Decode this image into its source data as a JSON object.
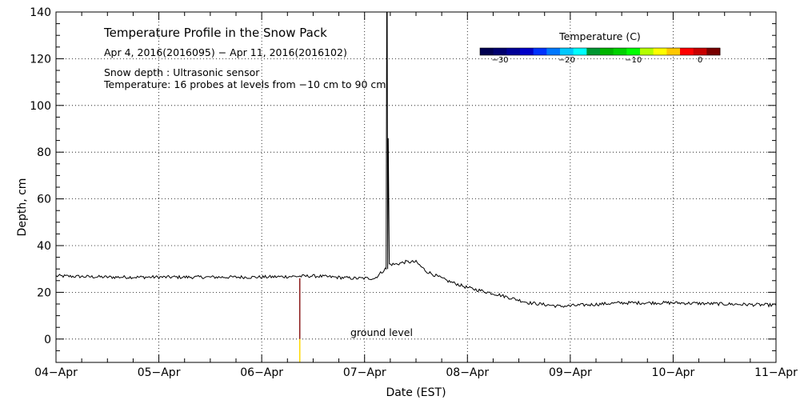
{
  "chart_data": {
    "type": "line",
    "title": "Temperature Profile in the Snow Pack",
    "subtitle": "Apr  4, 2016(2016095) − Apr 11, 2016(2016102)",
    "notes": [
      "Snow depth : Ultrasonic sensor",
      "Temperature: 16 probes at levels from −10 cm to 90 cm"
    ],
    "annotation": "ground level",
    "xlabel": "Date (EST)",
    "ylabel": "Depth, cm",
    "xlim": [
      0,
      7
    ],
    "ylim": [
      -10,
      140
    ],
    "x_tick_values": [
      0,
      1,
      2,
      3,
      4,
      5,
      6,
      7
    ],
    "x_tick_labels": [
      "04−Apr",
      "05−Apr",
      "06−Apr",
      "07−Apr",
      "08−Apr",
      "09−Apr",
      "10−Apr",
      "11−Apr"
    ],
    "y_ticks": [
      0,
      20,
      40,
      60,
      80,
      100,
      120,
      140
    ],
    "grid": true,
    "series": [
      {
        "name": "Snow depth",
        "color": "#000000",
        "x": [
          0.0,
          0.5,
          1.0,
          1.5,
          2.0,
          2.5,
          2.9,
          3.1,
          3.2,
          3.21,
          3.215,
          3.22,
          3.225,
          3.23,
          3.24,
          3.3,
          3.4,
          3.5,
          3.6,
          3.8,
          4.0,
          4.3,
          4.6,
          4.9,
          5.1,
          5.5,
          6.0,
          6.5,
          7.0
        ],
        "values": [
          27,
          26.5,
          26.5,
          26.5,
          26.5,
          27,
          26,
          26,
          30,
          30,
          140,
          140,
          30,
          86,
          32,
          32,
          33,
          33,
          29,
          25,
          22,
          19,
          15.5,
          14,
          14.5,
          15.5,
          15.5,
          15,
          14.5
        ]
      }
    ],
    "vertical_markers": [
      {
        "name": "probe-gap",
        "x": 2.37,
        "y_from": -10,
        "y_to": 26,
        "color_upper": "#8b1a1a",
        "color_lower": "#ffd800",
        "split_at": 0
      }
    ],
    "colorbar": {
      "title": "Temperature (C)",
      "range": [
        -33,
        3
      ],
      "tick_values": [
        -30,
        -20,
        -10,
        0
      ],
      "tick_labels": [
        "−30",
        "−20",
        "−10",
        "0"
      ],
      "colors": [
        "#000050",
        "#00006e",
        "#000096",
        "#0000c8",
        "#0032ff",
        "#0078ff",
        "#00c8ff",
        "#00ffff",
        "#009632",
        "#00b400",
        "#00d200",
        "#00ff00",
        "#b4ff00",
        "#ffff00",
        "#ffc800",
        "#ff0000",
        "#c80000",
        "#780000"
      ]
    }
  }
}
